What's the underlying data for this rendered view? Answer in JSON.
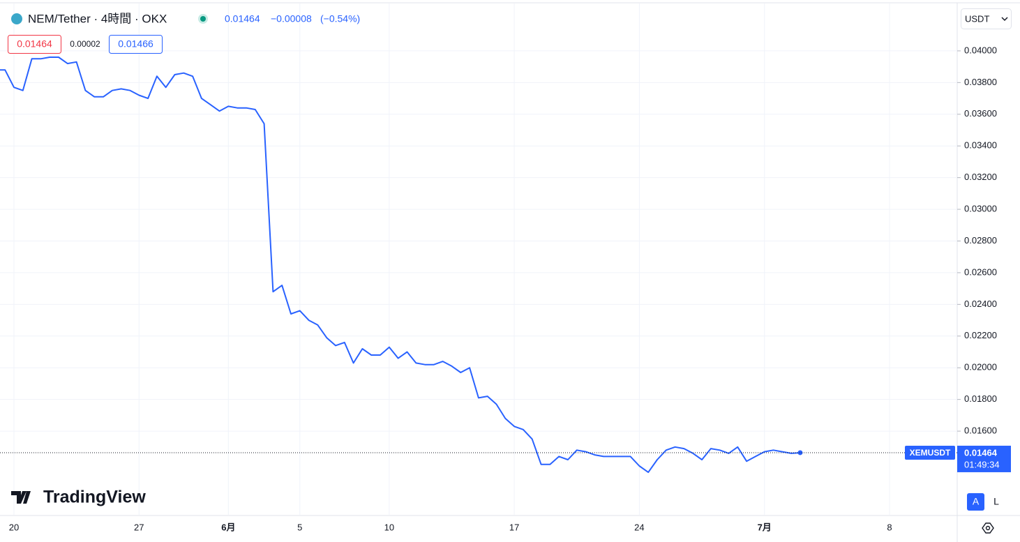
{
  "chart_data": {
    "type": "line",
    "title": "NEM/Tether · 4時間 · OKX",
    "quote": {
      "last": "0.01464",
      "change": "−0.00008",
      "change_pct": "(−0.54%)"
    },
    "bid_ask": {
      "bid": "0.01464",
      "spread": "0.00002",
      "ask": "0.01466"
    },
    "currency": "USDT",
    "brand": "TradingView",
    "buttons": [
      "A",
      "L"
    ],
    "last_price": {
      "label": "XEMUSDT",
      "value": 0.01464,
      "countdown": "01:49:34"
    },
    "categories": [
      null,
      null,
      "20",
      null,
      null,
      null,
      null,
      null,
      null,
      null,
      null,
      null,
      null,
      null,
      null,
      null,
      "27",
      null,
      null,
      null,
      null,
      null,
      null,
      null,
      null,
      null,
      "6月",
      null,
      null,
      null,
      null,
      null,
      null,
      null,
      "5",
      null,
      null,
      null,
      null,
      null,
      null,
      null,
      null,
      null,
      "10",
      null,
      null,
      null,
      null,
      null,
      null,
      null,
      null,
      null,
      null,
      null,
      null,
      null,
      "17",
      null,
      null,
      null,
      null,
      null,
      null,
      null,
      null,
      null,
      null,
      null,
      null,
      null,
      "24",
      null,
      null,
      null,
      null,
      null,
      null,
      null,
      null,
      null,
      null,
      null,
      null,
      null,
      "7月",
      null,
      null,
      null,
      null,
      null,
      null,
      null,
      null,
      null,
      null,
      null,
      null,
      null,
      "8",
      null,
      null,
      null,
      null,
      null,
      null
    ],
    "series": [
      {
        "name": "XEMUSDT",
        "color": "#2962ff",
        "values": [
          0.0388,
          0.0388,
          0.0377,
          0.0375,
          0.0395,
          0.0395,
          0.0396,
          0.0396,
          0.0392,
          0.0393,
          0.0375,
          0.0371,
          0.0371,
          0.0375,
          0.0376,
          0.0375,
          0.0372,
          0.037,
          0.0384,
          0.0377,
          0.0385,
          0.0386,
          0.0384,
          0.037,
          0.0366,
          0.0362,
          0.0365,
          0.0364,
          0.0364,
          0.0363,
          0.0354,
          0.0248,
          0.0252,
          0.0234,
          0.0236,
          0.023,
          0.0227,
          0.0219,
          0.0214,
          0.0216,
          0.0203,
          0.0212,
          0.0208,
          0.0208,
          0.0213,
          0.0206,
          0.021,
          0.0203,
          0.0202,
          0.0202,
          0.0204,
          0.0201,
          0.0197,
          0.02,
          0.0181,
          0.0182,
          0.0177,
          0.0168,
          0.0163,
          0.0161,
          0.0155,
          0.0139,
          0.0139,
          0.0144,
          0.0142,
          0.0148,
          0.0147,
          0.0145,
          0.0144,
          0.0144,
          0.0144,
          0.0144,
          0.0138,
          0.0134,
          0.0142,
          0.0148,
          0.015,
          0.0149,
          0.0146,
          0.0142,
          0.0149,
          0.0148,
          0.0146,
          0.015,
          0.0141,
          0.0144,
          0.0147,
          0.0148,
          0.0147,
          0.0146,
          0.01464,
          null,
          null,
          null,
          null,
          null,
          null,
          null,
          null,
          null,
          null,
          null,
          null,
          null,
          null,
          null,
          null
        ]
      }
    ],
    "ylim": [
      0.01072,
      0.04299
    ],
    "yticks": [
      {
        "value": 0.04,
        "label": "0.04000"
      },
      {
        "value": 0.038,
        "label": "0.03800"
      },
      {
        "value": 0.036,
        "label": "0.03600"
      },
      {
        "value": 0.034,
        "label": "0.03400"
      },
      {
        "value": 0.032,
        "label": "0.03200"
      },
      {
        "value": 0.03,
        "label": "0.03000"
      },
      {
        "value": 0.028,
        "label": "0.02800"
      },
      {
        "value": 0.026,
        "label": "0.02600"
      },
      {
        "value": 0.024,
        "label": "0.02400"
      },
      {
        "value": 0.022,
        "label": "0.02200"
      },
      {
        "value": 0.02,
        "label": "0.02000"
      },
      {
        "value": 0.018,
        "label": "0.01800"
      },
      {
        "value": 0.016,
        "label": "0.01600"
      }
    ],
    "grid": true
  }
}
